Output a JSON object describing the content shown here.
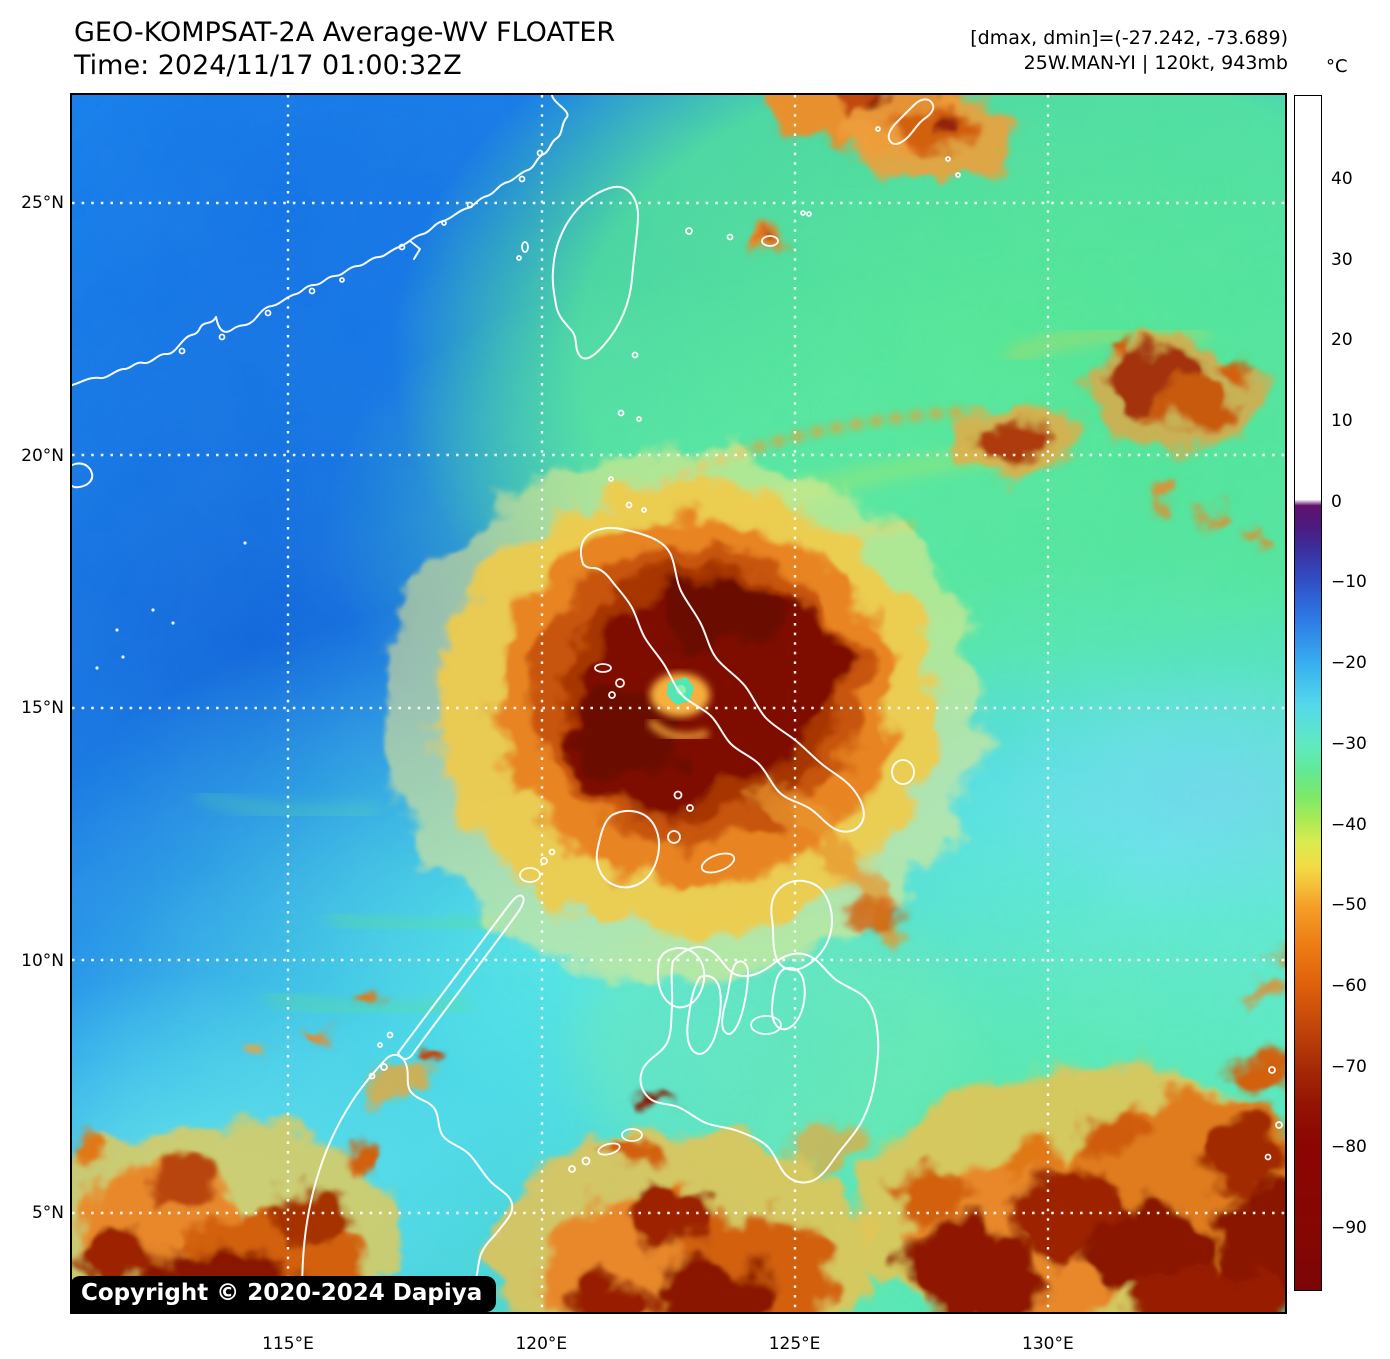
{
  "header": {
    "title": "GEO-KOMPSAT-2A Average-WV FLOATER",
    "time_line": "Time: 2024/11/17 01:00:32Z",
    "dminmax_line": "[dmax, dmin]=(-27.242, -73.689)",
    "storm_line": "25W.MAN-YI | 120kt, 943mb"
  },
  "colorbar": {
    "unit": "°C",
    "ticks": [
      {
        "label": "40",
        "value": 40
      },
      {
        "label": "30",
        "value": 30
      },
      {
        "label": "20",
        "value": 20
      },
      {
        "label": "10",
        "value": 10
      },
      {
        "label": "0",
        "value": 0
      },
      {
        "label": "−10",
        "value": -10
      },
      {
        "label": "−20",
        "value": -20
      },
      {
        "label": "−30",
        "value": -30
      },
      {
        "label": "−40",
        "value": -40
      },
      {
        "label": "−50",
        "value": -50
      },
      {
        "label": "−60",
        "value": -60
      },
      {
        "label": "−70",
        "value": -70
      },
      {
        "label": "−80",
        "value": -80
      },
      {
        "label": "−90",
        "value": -90
      }
    ]
  },
  "axes": {
    "lat_ticks": [
      {
        "label": "25°N",
        "value": 25
      },
      {
        "label": "20°N",
        "value": 20
      },
      {
        "label": "15°N",
        "value": 15
      },
      {
        "label": "10°N",
        "value": 10
      },
      {
        "label": "5°N",
        "value": 5
      }
    ],
    "lon_ticks": [
      {
        "label": "115°E",
        "value": 115
      },
      {
        "label": "120°E",
        "value": 120
      },
      {
        "label": "125°E",
        "value": 125
      },
      {
        "label": "130°E",
        "value": 130
      }
    ]
  },
  "map": {
    "copyright": "Copyright © 2020-2024 Dapiya",
    "storm": {
      "id": "25W",
      "name": "MAN-YI",
      "intensity": "120kt",
      "pressure": "943mb"
    },
    "colors": {
      "deep_blue": "#1478e8",
      "cyan": "#54d8ea",
      "green": "#5ce9ae",
      "convection_orange": "#e8882a",
      "convection_dark_red": "#8a1204",
      "typhoon_eye": "#52e6b4"
    }
  }
}
